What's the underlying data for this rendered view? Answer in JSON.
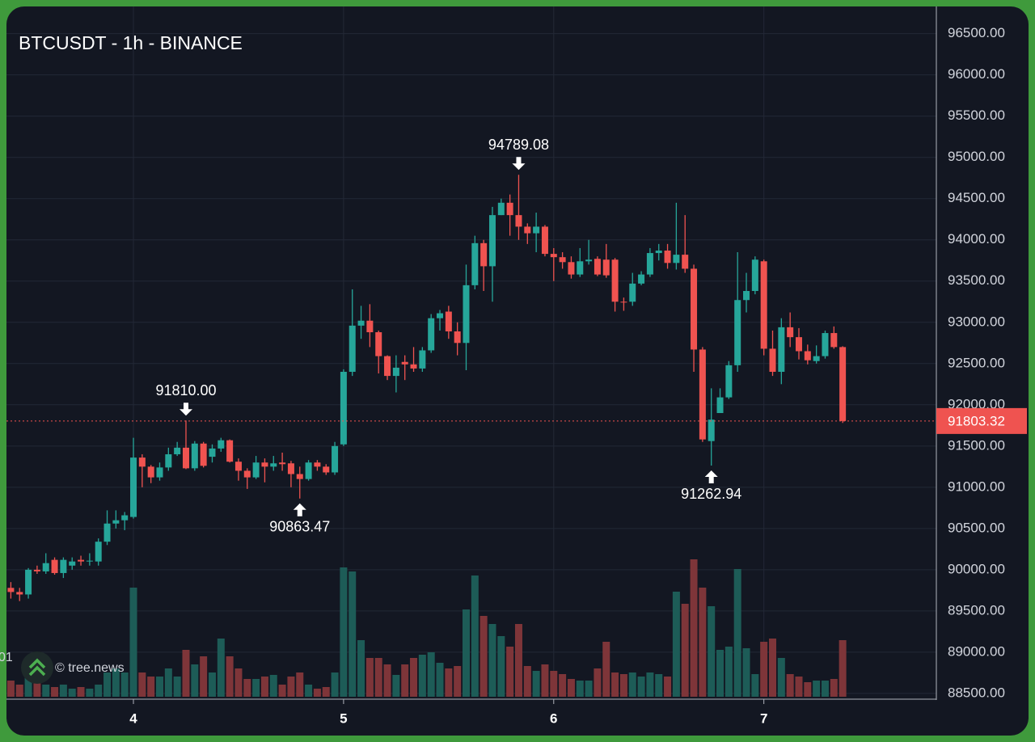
{
  "chart_data": {
    "type": "candlestick",
    "title": "BTCUSDT - 1h - BINANCE",
    "watermark": "© tree.news",
    "partial_label": "01",
    "up_color": "#26a69a",
    "down_color": "#ef5350",
    "up_volume_color": "#1d5c57",
    "down_volume_color": "#7e3539",
    "grid": true,
    "xlim": [
      -0.5,
      105.7
    ],
    "xticks": [
      {
        "value": 14,
        "label": "4"
      },
      {
        "value": 38,
        "label": "5"
      },
      {
        "value": 62,
        "label": "6"
      },
      {
        "value": 86,
        "label": "7"
      }
    ],
    "ylim": [
      88460,
      96830
    ],
    "yticks": [
      {
        "value": 88500,
        "label": "88500.00"
      },
      {
        "value": 89000,
        "label": "89000.00"
      },
      {
        "value": 89500,
        "label": "89500.00"
      },
      {
        "value": 90000,
        "label": "90000.00"
      },
      {
        "value": 90500,
        "label": "90500.00"
      },
      {
        "value": 91000,
        "label": "91000.00"
      },
      {
        "value": 91500,
        "label": "91500.00"
      },
      {
        "value": 92000,
        "label": "92000.00"
      },
      {
        "value": 92500,
        "label": "92500.00"
      },
      {
        "value": 93000,
        "label": "93000.00"
      },
      {
        "value": 93500,
        "label": "93500.00"
      },
      {
        "value": 94000,
        "label": "94000.00"
      },
      {
        "value": 94500,
        "label": "94500.00"
      },
      {
        "value": 95000,
        "label": "95000.00"
      },
      {
        "value": 95500,
        "label": "95500.00"
      },
      {
        "value": 96000,
        "label": "96000.00"
      },
      {
        "value": 96500,
        "label": "96500.00"
      }
    ],
    "volume_lim": [
      0,
      200
    ],
    "open": [
      89780,
      89730,
      89700,
      90000,
      89980,
      90120,
      89960,
      90050,
      90120,
      90100,
      90100,
      90340,
      90560,
      90600,
      90640,
      91360,
      91250,
      91120,
      91240,
      91400,
      91480,
      91230,
      91530,
      91370,
      91470,
      91570,
      91310,
      91200,
      91120,
      91300,
      91250,
      91300,
      91290,
      91160,
      91100,
      91300,
      91250,
      91180,
      91520,
      92400,
      92960,
      93020,
      92880,
      92590,
      92350,
      92520,
      92490,
      92440,
      92660,
      93050,
      93130,
      92890,
      92750,
      93450,
      93960,
      93680,
      94300,
      94450,
      94300,
      94160,
      94080,
      94160,
      93830,
      93790,
      93730,
      93580,
      93740,
      93770,
      93760,
      93760,
      93250,
      93250,
      93470,
      93580,
      93840,
      93870,
      93720,
      93820,
      93650,
      92670,
      91560,
      91900,
      92090,
      92480,
      93270,
      93380,
      93740,
      92680,
      92400,
      92940,
      92820,
      92650,
      92530,
      92590,
      92870,
      92700
    ],
    "high": [
      89850,
      89780,
      90020,
      90050,
      90200,
      90150,
      90150,
      90150,
      90170,
      90200,
      90380,
      90720,
      90720,
      90700,
      91600,
      91400,
      91270,
      91300,
      91480,
      91550,
      91810,
      91560,
      91550,
      91520,
      91600,
      91580,
      91350,
      91230,
      91380,
      91350,
      91380,
      91420,
      91320,
      91250,
      91330,
      91330,
      91280,
      91550,
      92430,
      93400,
      93200,
      93220,
      92900,
      92600,
      92600,
      92600,
      92700,
      92700,
      93100,
      93150,
      93200,
      93000,
      93700,
      94050,
      94000,
      94400,
      94500,
      94550,
      94789.08,
      94200,
      94330,
      94180,
      93900,
      93850,
      93800,
      93900,
      94000,
      93800,
      93950,
      93780,
      93300,
      93600,
      93620,
      93900,
      93950,
      93950,
      94450,
      94300,
      93700,
      92700,
      92200,
      92200,
      92530,
      93850,
      93600,
      93800,
      93760,
      92900,
      93050,
      93120,
      92930,
      92730,
      92720,
      92900,
      92950,
      92710
    ],
    "low": [
      89650,
      89620,
      89650,
      89950,
      89950,
      89940,
      89900,
      90000,
      90050,
      90050,
      90050,
      90300,
      90500,
      90480,
      90620,
      91000,
      91050,
      91080,
      91200,
      91380,
      91220,
      91200,
      91240,
      91300,
      91430,
      91300,
      91080,
      90980,
      91100,
      91060,
      91200,
      91200,
      91000,
      90863.47,
      91080,
      91200,
      91150,
      91150,
      91500,
      92350,
      92800,
      92700,
      92380,
      92300,
      92150,
      92300,
      92400,
      92400,
      92630,
      92900,
      92800,
      92600,
      92420,
      93400,
      93380,
      93250,
      94300,
      94050,
      94000,
      93950,
      93850,
      93800,
      93500,
      93650,
      93530,
      93550,
      93700,
      93560,
      93540,
      93130,
      93140,
      93200,
      93450,
      93550,
      93750,
      93650,
      93640,
      93600,
      92400,
      91550,
      91262.94,
      91900,
      92070,
      92400,
      93120,
      93340,
      92600,
      92350,
      92250,
      92700,
      92550,
      92490,
      92500,
      92560,
      92680,
      91780
    ],
    "close": [
      89730,
      89700,
      90000,
      89980,
      90080,
      89960,
      90120,
      90100,
      90100,
      90110,
      90340,
      90560,
      90600,
      90660,
      91360,
      91250,
      91120,
      91240,
      91400,
      91480,
      91230,
      91530,
      91260,
      91470,
      91570,
      91310,
      91200,
      91120,
      91300,
      91250,
      91290,
      91280,
      91160,
      91100,
      91300,
      91250,
      91180,
      91500,
      92400,
      92960,
      93020,
      92880,
      92590,
      92350,
      92450,
      92490,
      92440,
      92660,
      93050,
      93110,
      92890,
      92750,
      93450,
      93960,
      93680,
      94300,
      94450,
      94300,
      94160,
      94080,
      94160,
      93830,
      93790,
      93730,
      93580,
      93740,
      93760,
      93580,
      93570,
      93250,
      93240,
      93470,
      93580,
      93840,
      93870,
      93720,
      93820,
      93650,
      92670,
      91580,
      91820,
      92090,
      92480,
      93270,
      93380,
      93760,
      92680,
      92400,
      92940,
      92820,
      92650,
      92540,
      92590,
      92870,
      92700,
      91803.32
    ],
    "volume": [
      20,
      15,
      25,
      20,
      15,
      12,
      15,
      10,
      12,
      10,
      15,
      30,
      35,
      30,
      135,
      30,
      25,
      25,
      35,
      25,
      58,
      40,
      50,
      30,
      72,
      50,
      35,
      22,
      22,
      25,
      27,
      15,
      25,
      30,
      15,
      10,
      12,
      30,
      160,
      155,
      70,
      48,
      48,
      40,
      27,
      40,
      48,
      52,
      55,
      42,
      35,
      38,
      108,
      150,
      100,
      90,
      75,
      62,
      90,
      38,
      32,
      40,
      32,
      28,
      22,
      20,
      20,
      35,
      68,
      30,
      28,
      30,
      25,
      30,
      28,
      25,
      130,
      115,
      170,
      135,
      112,
      58,
      62,
      158,
      60,
      28,
      68,
      72,
      48,
      28,
      25,
      18,
      20,
      20,
      22,
      70
    ],
    "high_labels": [
      null,
      null,
      null,
      null,
      null,
      null,
      null,
      null,
      null,
      null,
      null,
      null,
      null,
      null,
      null,
      null,
      null,
      null,
      null,
      null,
      "91810.00",
      null,
      null,
      null,
      null,
      null,
      null,
      null,
      null,
      null,
      null,
      null,
      null,
      null,
      null,
      null,
      null,
      null,
      null,
      null,
      null,
      null,
      null,
      null,
      null,
      null,
      null,
      null,
      null,
      null,
      null,
      null,
      null,
      null,
      null,
      null,
      null,
      null,
      "94789.08",
      null,
      null,
      null,
      null,
      null,
      null,
      null,
      null,
      null,
      null,
      null,
      null,
      null,
      null,
      null,
      null,
      null,
      null,
      null,
      null,
      null,
      null,
      null,
      null,
      null,
      null,
      null,
      null,
      null,
      null,
      null,
      null,
      null,
      null,
      null,
      null,
      null
    ],
    "low_labels": [
      null,
      null,
      null,
      null,
      null,
      null,
      null,
      null,
      null,
      null,
      null,
      null,
      null,
      null,
      null,
      null,
      null,
      null,
      null,
      null,
      null,
      null,
      null,
      null,
      null,
      null,
      null,
      null,
      null,
      null,
      null,
      null,
      null,
      "90863.47",
      null,
      null,
      null,
      null,
      null,
      null,
      null,
      null,
      null,
      null,
      null,
      null,
      null,
      null,
      null,
      null,
      null,
      null,
      null,
      null,
      null,
      null,
      null,
      null,
      null,
      null,
      null,
      null,
      null,
      null,
      null,
      null,
      null,
      null,
      null,
      null,
      null,
      null,
      null,
      null,
      null,
      null,
      null,
      null,
      null,
      null,
      "91262.94",
      null,
      null,
      null,
      null,
      null,
      null,
      null,
      null,
      null,
      null,
      null,
      null,
      null,
      null,
      null
    ]
  }
}
